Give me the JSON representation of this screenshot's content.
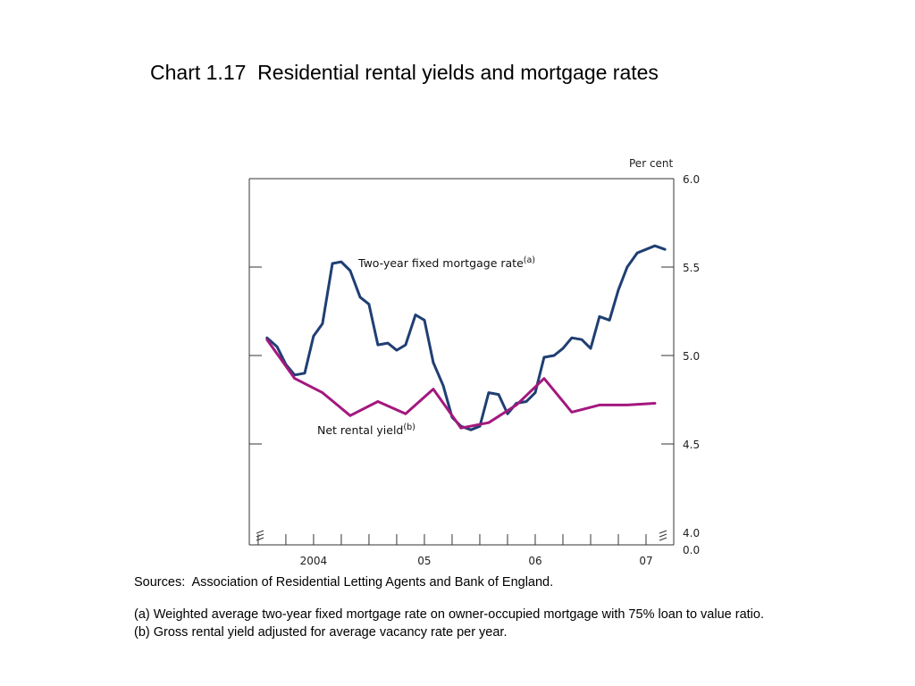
{
  "title": "Chart 1.17  Residential rental yields and mortgage rates",
  "sources": "Sources:  Association of Residential Letting Agents and Bank of England.",
  "footnotes": [
    "(a) Weighted average two-year fixed mortgage rate on owner-occupied mortgage with 75% loan to value ratio.",
    "(b) Gross rental yield adjusted for average vacancy rate per year."
  ],
  "colors": {
    "mortgage": "#1f3f73",
    "rental": "#a3187f"
  },
  "chart_data": {
    "type": "line",
    "title": "Chart 1.17  Residential rental yields and mortgage rates",
    "ylabel": "Per cent",
    "y_axis_position": "right",
    "ylim": [
      4.0,
      6.0
    ],
    "y_ticks": [
      "6.0",
      "5.5",
      "5.0",
      "4.5",
      "4.0"
    ],
    "y_break_label": "0.0",
    "x_labels": [
      {
        "label": "2004",
        "x": 2004.0
      },
      {
        "label": "05",
        "x": 2005.0
      },
      {
        "label": "06",
        "x": 2006.0
      },
      {
        "label": "07",
        "x": 2007.0
      }
    ],
    "xlim": [
      2003.42,
      2007.25
    ],
    "x_tick_positions": [
      2003.5,
      2003.75,
      2004.0,
      2004.25,
      2004.5,
      2004.75,
      2005.0,
      2005.25,
      2005.5,
      2005.75,
      2006.0,
      2006.25,
      2006.5,
      2006.75,
      2007.0
    ],
    "series": [
      {
        "name": "Two-year fixed mortgage rate",
        "footnote": "(a)",
        "color": "#1f3f73",
        "x": [
          2003.58,
          2003.67,
          2003.75,
          2003.83,
          2003.92,
          2004.0,
          2004.08,
          2004.17,
          2004.25,
          2004.33,
          2004.42,
          2004.5,
          2004.58,
          2004.67,
          2004.75,
          2004.83,
          2004.92,
          2005.0,
          2005.08,
          2005.17,
          2005.25,
          2005.33,
          2005.42,
          2005.5,
          2005.58,
          2005.67,
          2005.75,
          2005.83,
          2005.92,
          2006.0,
          2006.08,
          2006.17,
          2006.25,
          2006.33,
          2006.42,
          2006.5,
          2006.58,
          2006.67,
          2006.75,
          2006.83,
          2006.92,
          2007.0,
          2007.08,
          2007.17
        ],
        "values": [
          5.1,
          5.05,
          4.95,
          4.89,
          4.9,
          5.11,
          5.18,
          5.52,
          5.53,
          5.48,
          5.33,
          5.29,
          5.06,
          5.07,
          5.03,
          5.06,
          5.23,
          5.2,
          4.96,
          4.83,
          4.65,
          4.6,
          4.58,
          4.6,
          4.79,
          4.78,
          4.67,
          4.73,
          4.74,
          4.79,
          4.99,
          5.0,
          5.04,
          5.1,
          5.09,
          5.04,
          5.22,
          5.2,
          5.37,
          5.5,
          5.58,
          5.6,
          5.62,
          5.6
        ]
      },
      {
        "name": "Net rental yield",
        "footnote": "(b)",
        "color": "#a3187f",
        "x": [
          2003.58,
          2003.83,
          2004.08,
          2004.33,
          2004.58,
          2004.83,
          2005.08,
          2005.33,
          2005.58,
          2005.83,
          2006.08,
          2006.33,
          2006.58,
          2006.83,
          2007.08
        ],
        "values": [
          5.09,
          4.87,
          4.79,
          4.66,
          4.74,
          4.67,
          4.81,
          4.59,
          4.62,
          4.72,
          4.87,
          4.68,
          4.72,
          4.72,
          4.73
        ]
      }
    ]
  },
  "labels": {
    "mortgage": {
      "text": "Two-year fixed mortgage rate",
      "sup": "(a)"
    },
    "rental": {
      "text": "Net rental yield",
      "sup": "(b)"
    }
  }
}
